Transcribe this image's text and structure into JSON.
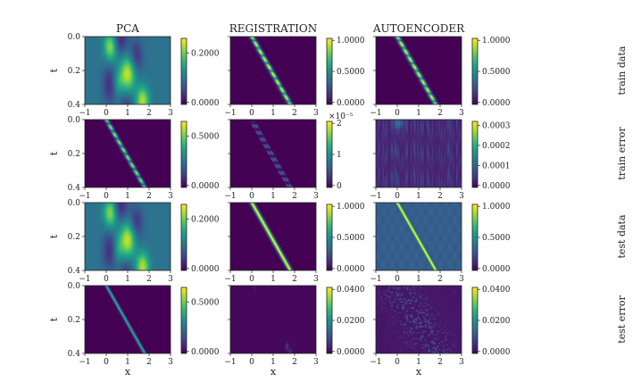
{
  "chart_data": {
    "type": "heatmap",
    "layout": {
      "rows": 4,
      "cols": 3
    },
    "column_titles": [
      "PCA",
      "REGISTRATION",
      "AUTOENCODER"
    ],
    "row_labels": [
      "train data",
      "train error",
      "test data",
      "test error"
    ],
    "xlabel": "x",
    "ylabel": "t",
    "xlim": [
      -1,
      3
    ],
    "ylim": [
      0.0,
      0.4
    ],
    "x_ticks": [
      "−1",
      "0",
      "1",
      "2",
      "3"
    ],
    "y_ticks": [
      "0.0",
      "0.2",
      "0.4"
    ],
    "colormap": "viridis",
    "colormap_stops": [
      "#440154",
      "#482878",
      "#3e4989",
      "#31688e",
      "#26828e",
      "#1f9e89",
      "#35b779",
      "#6ece58",
      "#b5de2b",
      "#fde725"
    ],
    "panels": [
      {
        "row": 0,
        "col": 0,
        "pattern": "pca_data",
        "colorbar_ticks": [
          "0.2000",
          "0.0000"
        ],
        "colorbar_multiplier": ""
      },
      {
        "row": 0,
        "col": 1,
        "pattern": "dotted_line",
        "colorbar_ticks": [
          "1.0000",
          "0.5000",
          "0.0000"
        ],
        "colorbar_multiplier": ""
      },
      {
        "row": 0,
        "col": 2,
        "pattern": "dotted_line",
        "colorbar_ticks": [
          "1.0000",
          "0.5000",
          "0.0000"
        ],
        "colorbar_multiplier": ""
      },
      {
        "row": 1,
        "col": 0,
        "pattern": "dotted_line_err",
        "colorbar_ticks": [
          "0.5000",
          "0.0000"
        ],
        "colorbar_multiplier": ""
      },
      {
        "row": 1,
        "col": 1,
        "pattern": "faint_dashes",
        "colorbar_ticks": [
          "2",
          "1",
          "0"
        ],
        "colorbar_multiplier": "×10⁻⁵"
      },
      {
        "row": 1,
        "col": 2,
        "pattern": "stripe_noise",
        "colorbar_ticks": [
          "0.0003",
          "0.0002",
          "0.0001",
          "0.0000"
        ],
        "colorbar_multiplier": ""
      },
      {
        "row": 2,
        "col": 0,
        "pattern": "pca_data",
        "colorbar_ticks": [
          "0.2000",
          "0.0000"
        ],
        "colorbar_multiplier": ""
      },
      {
        "row": 2,
        "col": 1,
        "pattern": "smooth_line",
        "colorbar_ticks": [
          "1.0000",
          "0.5000",
          "0.0000"
        ],
        "colorbar_multiplier": ""
      },
      {
        "row": 2,
        "col": 2,
        "pattern": "smooth_line_ae",
        "colorbar_ticks": [
          "1.0000",
          "0.5000",
          "0.0000"
        ],
        "colorbar_multiplier": ""
      },
      {
        "row": 3,
        "col": 0,
        "pattern": "smooth_line_err",
        "colorbar_ticks": [
          "0.5000",
          "0.0000"
        ],
        "colorbar_multiplier": ""
      },
      {
        "row": 3,
        "col": 1,
        "pattern": "sparse_err",
        "colorbar_ticks": [
          "0.0400",
          "0.0200",
          "0.0000"
        ],
        "colorbar_multiplier": ""
      },
      {
        "row": 3,
        "col": 2,
        "pattern": "speckle_err",
        "colorbar_ticks": [
          "0.0400",
          "0.0200",
          "0.0000"
        ],
        "colorbar_multiplier": ""
      }
    ]
  }
}
